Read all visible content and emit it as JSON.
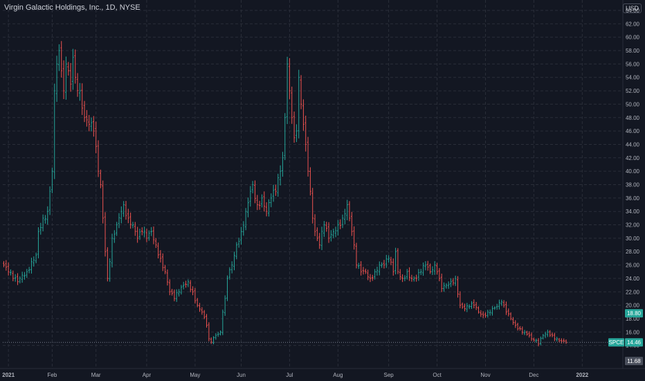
{
  "header": {
    "title": "Virgin Galactic Holdings, Inc., 1D, NYSE",
    "currency": "USD"
  },
  "colors": {
    "background": "#131722",
    "grid": "#2a2e39",
    "up": "#26a69a",
    "down": "#ef5350",
    "text": "#b2b5be"
  },
  "chart_data": {
    "type": "ohlc",
    "title": "Virgin Galactic Holdings, Inc., 1D, NYSE",
    "ylim": [
      10,
      65
    ],
    "grid": true,
    "y_ticks": [
      "14.00",
      "16.00",
      "18.00",
      "20.00",
      "22.00",
      "24.00",
      "26.00",
      "28.00",
      "30.00",
      "32.00",
      "34.00",
      "36.00",
      "38.00",
      "40.00",
      "42.00",
      "44.00",
      "46.00",
      "48.00",
      "50.00",
      "52.00",
      "54.00",
      "56.00",
      "58.00",
      "60.00",
      "62.00",
      "64.00"
    ],
    "x_ticks": [
      {
        "label": "2021",
        "index": 2
      },
      {
        "label": "Feb",
        "index": 21
      },
      {
        "label": "Mar",
        "index": 40
      },
      {
        "label": "Apr",
        "index": 62
      },
      {
        "label": "May",
        "index": 83
      },
      {
        "label": "Jun",
        "index": 103
      },
      {
        "label": "Jul",
        "index": 124
      },
      {
        "label": "Aug",
        "index": 145
      },
      {
        "label": "Sep",
        "index": 167
      },
      {
        "label": "Oct",
        "index": 188
      },
      {
        "label": "Nov",
        "index": 209
      },
      {
        "label": "Dec",
        "index": 230
      },
      {
        "label": "2022",
        "index": 251
      }
    ],
    "price_line": {
      "ticker": "SPCE",
      "value": 14.46,
      "label": "14.46"
    },
    "other_badges": [
      {
        "value": 18.8,
        "label": "18.80"
      },
      {
        "value": 11.68,
        "label": "11.68"
      }
    ],
    "anchors": [
      [
        0,
        26
      ],
      [
        2,
        25
      ],
      [
        4,
        24
      ],
      [
        6,
        23.5
      ],
      [
        8,
        24.5
      ],
      [
        10,
        25
      ],
      [
        12,
        26.5
      ],
      [
        14,
        27.5
      ],
      [
        15,
        31
      ],
      [
        17,
        33
      ],
      [
        19,
        34
      ],
      [
        20,
        37
      ],
      [
        21,
        40
      ],
      [
        22,
        52
      ],
      [
        23,
        56
      ],
      [
        24,
        58
      ],
      [
        25,
        55
      ],
      [
        26,
        52
      ],
      [
        27,
        56
      ],
      [
        28,
        55
      ],
      [
        29,
        53
      ],
      [
        30,
        57
      ],
      [
        31,
        54
      ],
      [
        33,
        52
      ],
      [
        35,
        48
      ],
      [
        37,
        47
      ],
      [
        39,
        46
      ],
      [
        41,
        40
      ],
      [
        42,
        38
      ],
      [
        43,
        33
      ],
      [
        44,
        28
      ],
      [
        45,
        24
      ],
      [
        47,
        30
      ],
      [
        49,
        32
      ],
      [
        51,
        34
      ],
      [
        52,
        35
      ],
      [
        54,
        33
      ],
      [
        56,
        32
      ],
      [
        58,
        30
      ],
      [
        60,
        31
      ],
      [
        62,
        30
      ],
      [
        64,
        31
      ],
      [
        66,
        29
      ],
      [
        68,
        27
      ],
      [
        70,
        25
      ],
      [
        72,
        22
      ],
      [
        74,
        21
      ],
      [
        76,
        22
      ],
      [
        78,
        23
      ],
      [
        80,
        23.5
      ],
      [
        82,
        22
      ],
      [
        84,
        20
      ],
      [
        86,
        19
      ],
      [
        88,
        17
      ],
      [
        89,
        15
      ],
      [
        90,
        14.5
      ],
      [
        92,
        15.5
      ],
      [
        94,
        16
      ],
      [
        95,
        19
      ],
      [
        96,
        21
      ],
      [
        97,
        24
      ],
      [
        99,
        26
      ],
      [
        101,
        29
      ],
      [
        103,
        31
      ],
      [
        105,
        34
      ],
      [
        107,
        37
      ],
      [
        108,
        38
      ],
      [
        110,
        35
      ],
      [
        112,
        36
      ],
      [
        114,
        34
      ],
      [
        116,
        36
      ],
      [
        118,
        37
      ],
      [
        120,
        40
      ],
      [
        121,
        42
      ],
      [
        122,
        48
      ],
      [
        123,
        56
      ],
      [
        124,
        52
      ],
      [
        125,
        48
      ],
      [
        126,
        45
      ],
      [
        127,
        46
      ],
      [
        128,
        54
      ],
      [
        129,
        50
      ],
      [
        130,
        47
      ],
      [
        131,
        44
      ],
      [
        132,
        40
      ],
      [
        133,
        37
      ],
      [
        134,
        33
      ],
      [
        135,
        31
      ],
      [
        136,
        30
      ],
      [
        137,
        29
      ],
      [
        139,
        32
      ],
      [
        141,
        30
      ],
      [
        143,
        31
      ],
      [
        145,
        32
      ],
      [
        147,
        33
      ],
      [
        149,
        35
      ],
      [
        150,
        33
      ],
      [
        151,
        31
      ],
      [
        152,
        29
      ],
      [
        153,
        26
      ],
      [
        155,
        25
      ],
      [
        157,
        25
      ],
      [
        159,
        24
      ],
      [
        161,
        25
      ],
      [
        163,
        26
      ],
      [
        165,
        26
      ],
      [
        167,
        27
      ],
      [
        169,
        25
      ],
      [
        170,
        28
      ],
      [
        171,
        25
      ],
      [
        173,
        24
      ],
      [
        175,
        25
      ],
      [
        177,
        24
      ],
      [
        179,
        24
      ],
      [
        181,
        25
      ],
      [
        183,
        26
      ],
      [
        185,
        25
      ],
      [
        187,
        26
      ],
      [
        188,
        25
      ],
      [
        189,
        24
      ],
      [
        190,
        22.5
      ],
      [
        192,
        23
      ],
      [
        194,
        23.5
      ],
      [
        196,
        24
      ],
      [
        198,
        20
      ],
      [
        200,
        19.5
      ],
      [
        202,
        19.8
      ],
      [
        204,
        20
      ],
      [
        206,
        19
      ],
      [
        208,
        18.5
      ],
      [
        210,
        19
      ],
      [
        212,
        19.5
      ],
      [
        214,
        19.8
      ],
      [
        216,
        20.5
      ],
      [
        217,
        20
      ],
      [
        218,
        19
      ],
      [
        220,
        18
      ],
      [
        222,
        17
      ],
      [
        224,
        16.5
      ],
      [
        226,
        16
      ],
      [
        228,
        15.5
      ],
      [
        229,
        15
      ],
      [
        230,
        14.8
      ],
      [
        232,
        14.2
      ],
      [
        234,
        15.5
      ],
      [
        236,
        16
      ],
      [
        238,
        15.5
      ],
      [
        240,
        15
      ],
      [
        242,
        14.6
      ],
      [
        244,
        14.46
      ]
    ]
  }
}
